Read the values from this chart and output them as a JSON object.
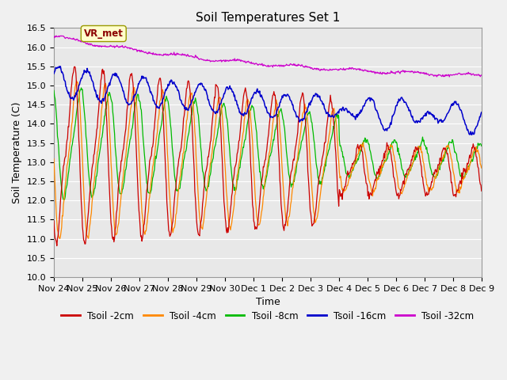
{
  "title": "Soil Temperatures Set 1",
  "xlabel": "Time",
  "ylabel": "Soil Temperature (C)",
  "ylim": [
    10.0,
    16.5
  ],
  "yticks": [
    10.0,
    10.5,
    11.0,
    11.5,
    12.0,
    12.5,
    13.0,
    13.5,
    14.0,
    14.5,
    15.0,
    15.5,
    16.0,
    16.5
  ],
  "xtick_labels": [
    "Nov 24",
    "Nov 25",
    "Nov 26",
    "Nov 27",
    "Nov 28",
    "Nov 29",
    "Nov 30",
    "Dec 1",
    "Dec 2",
    "Dec 3",
    "Dec 4",
    "Dec 5",
    "Dec 6",
    "Dec 7",
    "Dec 8",
    "Dec 9"
  ],
  "colors": {
    "Tsoil_2cm": "#cc0000",
    "Tsoil_4cm": "#ff8800",
    "Tsoil_8cm": "#00bb00",
    "Tsoil_16cm": "#0000cc",
    "Tsoil_32cm": "#cc00cc"
  },
  "legend_labels": [
    "Tsoil -2cm",
    "Tsoil -4cm",
    "Tsoil -8cm",
    "Tsoil -16cm",
    "Tsoil -32cm"
  ],
  "annotation_text": "VR_met",
  "fig_facecolor": "#f0f0f0",
  "ax_facecolor": "#e8e8e8",
  "grid_color": "#ffffff",
  "title_fontsize": 11,
  "axis_label_fontsize": 9,
  "tick_fontsize": 8
}
